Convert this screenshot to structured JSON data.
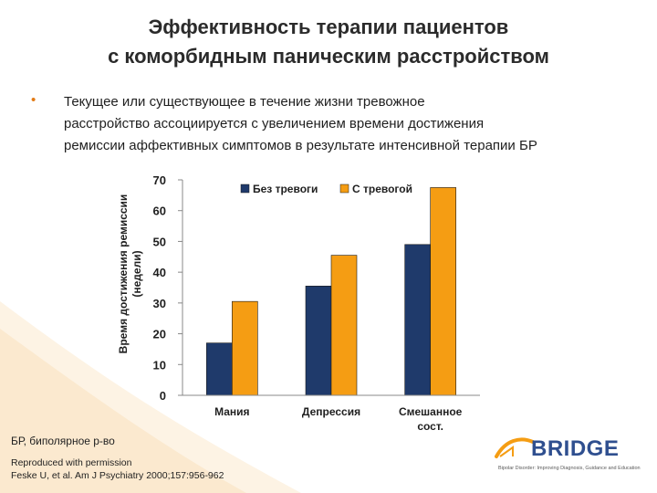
{
  "title": {
    "line1": "Эффективность терапии пациентов",
    "line2": "с коморбидным паническим расстройством"
  },
  "bullet": {
    "line1": "Текущее или существующее в течение жизни тревожное",
    "line2": "расстройство ассоциируется с увеличением времени достижения",
    "line3": "ремиссии аффективных симптомов в результате интенсивной терапии БР"
  },
  "chart_data": {
    "type": "bar",
    "categories": [
      "Мания",
      "Депрессия",
      "Смешанное сост."
    ],
    "category_lines": [
      [
        "Мания"
      ],
      [
        "Депрессия"
      ],
      [
        "Смешанное",
        "сост."
      ]
    ],
    "series": [
      {
        "name": "Без тревоги",
        "color": "#1f3a6b",
        "values": [
          17,
          35.5,
          49
        ]
      },
      {
        "name": "С тревогой",
        "color": "#f59d13",
        "values": [
          30.5,
          45.5,
          67.5
        ]
      }
    ],
    "ylabel_line1": "Время достижения ремиссии",
    "ylabel_line2": "(недели)",
    "ylim": [
      0,
      70
    ],
    "yticks": [
      0,
      10,
      20,
      30,
      40,
      50,
      60,
      70
    ],
    "legend_position": "top"
  },
  "footnote": {
    "abbreviation": "БР, биполярное р-во",
    "source_line1": "Reproduced with permission",
    "source_line2": "Feske U, et al. Am J Psychiatry 2000;157:956-962"
  },
  "logo": {
    "name": "BRIDGE",
    "tagline": "Bipolar Disorder: Improving Diagnosis, Guidance and Education"
  },
  "colors": {
    "accent": "#e27b16",
    "navy": "#1f3a6b",
    "orange": "#f59d13"
  }
}
